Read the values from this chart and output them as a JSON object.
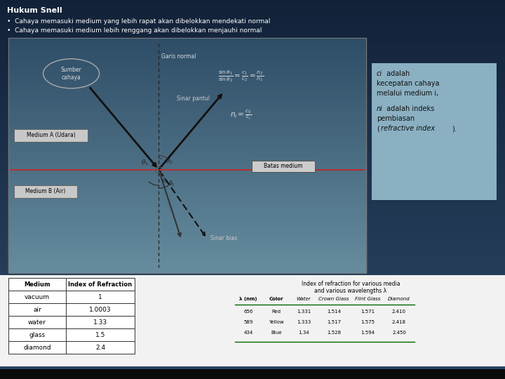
{
  "title": "Hukum Snell",
  "bullets": [
    "Cahaya memasuki medium yang lebih rapat akan dibelokkan mendekati normal",
    "Cahaya memasuki medium lebih renggang akan dibelokkan menjauhi normal"
  ],
  "info_box_bg": "#8ab0c0",
  "label_sumber": "Sumber\ncahaya",
  "label_garis_normal": "Garis normal",
  "label_sinar_pantul": "Sinar pantul",
  "label_medium_a": "Medium A (Udara)",
  "label_medium_b": "Medium B (Air)",
  "label_batas": "Batas medium",
  "label_sinar_bias": "Sinar bias",
  "table1_headers": [
    "Medium",
    "Index of Refraction"
  ],
  "table1_data": [
    [
      "vacuum",
      "1"
    ],
    [
      "air",
      "1.0003"
    ],
    [
      "water",
      "1.33"
    ],
    [
      "glass",
      "1.5"
    ],
    [
      "diamond",
      "2.4"
    ]
  ],
  "table2_title": "Index of refraction for various media\nand various wavelengths λ",
  "table2_headers": [
    "λ (nm)",
    "Color",
    "Water",
    "Crown Glass",
    "Flint Glass",
    "Diamond"
  ],
  "table2_data": [
    [
      "656",
      "Red",
      "1.331",
      "1.514",
      "1.571",
      "2.410"
    ],
    [
      "589",
      "Yellow",
      "1.333",
      "1.517",
      "1.575",
      "2.418"
    ],
    [
      "434",
      "Blue",
      "1.34",
      "1.528",
      "1.594",
      "2.450"
    ]
  ]
}
